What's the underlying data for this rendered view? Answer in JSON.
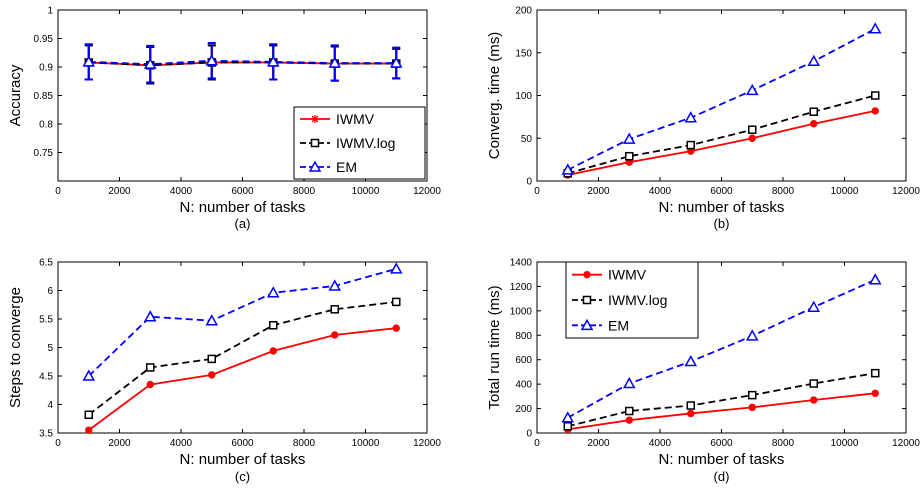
{
  "figure": {
    "panels": [
      {
        "caption": "(a)"
      },
      {
        "caption": "(b)"
      },
      {
        "caption": "(c)"
      },
      {
        "caption": "(d)"
      }
    ]
  },
  "chart_data": [
    {
      "type": "line",
      "xlabel": "N: number of tasks",
      "ylabel": "Accuracy",
      "xlim": [
        0,
        12000
      ],
      "ylim": [
        0.7,
        1
      ],
      "xticks": [
        0,
        2000,
        4000,
        6000,
        8000,
        10000,
        12000
      ],
      "yticks": [
        0.75,
        0.8,
        0.85,
        0.9,
        0.95,
        1
      ],
      "ytick_labels": [
        "0.75",
        "0.8",
        "0.85",
        "0.9",
        "0.95",
        "1"
      ],
      "grid": false,
      "legend": "bottom-right",
      "x": [
        1000,
        3000,
        5000,
        7000,
        9000,
        11000
      ],
      "series": [
        {
          "name": "IWMV",
          "color": "#ff0000",
          "dash": "solid",
          "marker": "star",
          "values": [
            0.908,
            0.903,
            0.908,
            0.908,
            0.906,
            0.906
          ],
          "error": [
            0.03,
            0.032,
            0.03,
            0.03,
            0.03,
            0.026
          ]
        },
        {
          "name": "IWMV.log",
          "color": "#000000",
          "dash": "dashed",
          "marker": "square",
          "values": [
            0.908,
            0.903,
            0.908,
            0.908,
            0.906,
            0.906
          ],
          "error": [
            0.03,
            0.032,
            0.03,
            0.03,
            0.03,
            0.026
          ]
        },
        {
          "name": "EM",
          "color": "#0000ff",
          "dash": "dashed",
          "marker": "triangle",
          "values": [
            0.909,
            0.905,
            0.911,
            0.909,
            0.907,
            0.907
          ],
          "error": [
            0.031,
            0.032,
            0.031,
            0.031,
            0.031,
            0.027
          ]
        }
      ]
    },
    {
      "type": "line",
      "xlabel": "N: number of tasks",
      "ylabel": "Converg. time (ms)",
      "xlim": [
        0,
        12000
      ],
      "ylim": [
        0,
        200
      ],
      "xticks": [
        0,
        2000,
        4000,
        6000,
        8000,
        10000,
        12000
      ],
      "yticks": [
        0,
        50,
        100,
        150,
        200
      ],
      "grid": false,
      "x": [
        1000,
        3000,
        5000,
        7000,
        9000,
        11000
      ],
      "series": [
        {
          "name": "IWMV",
          "color": "#ff0000",
          "dash": "solid",
          "marker": "dot",
          "values": [
            7,
            22,
            35,
            50,
            67,
            82
          ]
        },
        {
          "name": "IWMV.log",
          "color": "#000000",
          "dash": "dashed",
          "marker": "square",
          "values": [
            9,
            29,
            42,
            60,
            81,
            100
          ]
        },
        {
          "name": "EM",
          "color": "#0000ff",
          "dash": "dashed",
          "marker": "triangle",
          "values": [
            13,
            49,
            74,
            106,
            140,
            178
          ]
        }
      ]
    },
    {
      "type": "line",
      "xlabel": "N: number of tasks",
      "ylabel": "Steps to converge",
      "xlim": [
        0,
        12000
      ],
      "ylim": [
        3.5,
        6.5
      ],
      "xticks": [
        0,
        2000,
        4000,
        6000,
        8000,
        10000,
        12000
      ],
      "yticks": [
        3.5,
        4,
        4.5,
        5,
        5.5,
        6,
        6.5
      ],
      "ytick_labels": [
        "3.5",
        "4",
        "4.5",
        "5",
        "5.5",
        "6",
        "6.5"
      ],
      "grid": false,
      "x": [
        1000,
        3000,
        5000,
        7000,
        9000,
        11000
      ],
      "series": [
        {
          "name": "IWMV",
          "color": "#ff0000",
          "dash": "solid",
          "marker": "dot",
          "values": [
            3.55,
            4.35,
            4.52,
            4.94,
            5.22,
            5.34
          ]
        },
        {
          "name": "IWMV.log",
          "color": "#000000",
          "dash": "dashed",
          "marker": "square",
          "values": [
            3.82,
            4.65,
            4.8,
            5.39,
            5.67,
            5.8
          ]
        },
        {
          "name": "EM",
          "color": "#0000ff",
          "dash": "dashed",
          "marker": "triangle",
          "values": [
            4.5,
            5.54,
            5.47,
            5.96,
            6.08,
            6.38
          ]
        }
      ]
    },
    {
      "type": "line",
      "xlabel": "N: number of tasks",
      "ylabel": "Total run time (ms)",
      "xlim": [
        0,
        12000
      ],
      "ylim": [
        0,
        1400
      ],
      "xticks": [
        0,
        2000,
        4000,
        6000,
        8000,
        10000,
        12000
      ],
      "yticks": [
        0,
        200,
        400,
        600,
        800,
        1000,
        1200,
        1400
      ],
      "grid": false,
      "legend": "top-left",
      "x": [
        1000,
        3000,
        5000,
        7000,
        9000,
        11000
      ],
      "series": [
        {
          "name": "IWMV",
          "color": "#ff0000",
          "dash": "solid",
          "marker": "dot",
          "values": [
            30,
            105,
            160,
            210,
            270,
            325
          ]
        },
        {
          "name": "IWMV.log",
          "color": "#000000",
          "dash": "dashed",
          "marker": "square",
          "values": [
            55,
            180,
            225,
            310,
            405,
            490
          ]
        },
        {
          "name": "EM",
          "color": "#0000ff",
          "dash": "dashed",
          "marker": "triangle",
          "values": [
            125,
            405,
            585,
            795,
            1030,
            1255
          ]
        }
      ]
    }
  ]
}
